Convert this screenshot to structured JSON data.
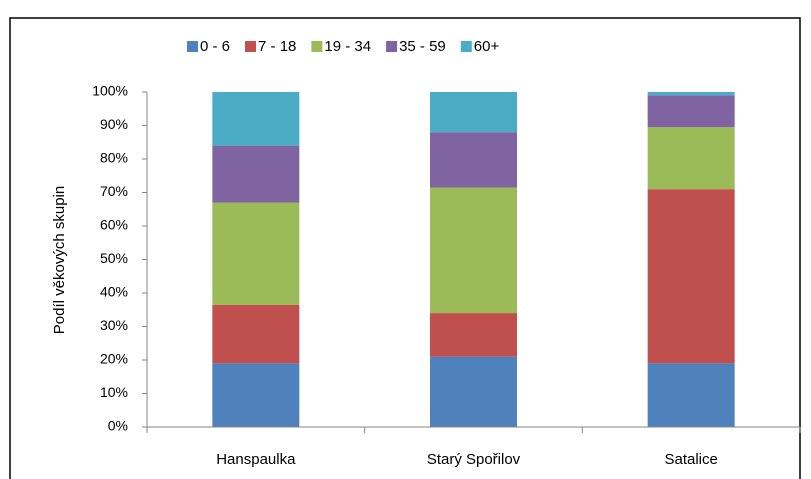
{
  "chart_data": {
    "type": "stacked_bar",
    "y_label": "Podíl věkových skupin",
    "categories": [
      "Hanspaulka",
      "Starý Spořilov",
      "Satalice"
    ],
    "series": [
      {
        "name": "0 - 6",
        "color": "#4f81bd",
        "values": [
          19,
          21,
          19
        ]
      },
      {
        "name": "7 - 18",
        "color": "#c0504d",
        "values": [
          17.5,
          13,
          52
        ]
      },
      {
        "name": "19 - 34",
        "color": "#9bbb59",
        "values": [
          30.5,
          37.5,
          18.5
        ]
      },
      {
        "name": "35 - 59",
        "color": "#8064a2",
        "values": [
          17,
          16.5,
          9.5
        ]
      },
      {
        "name": "60+",
        "color": "#4bacc6",
        "values": [
          16,
          12,
          1
        ]
      }
    ],
    "ylim": [
      0,
      100
    ],
    "yticks": [
      {
        "value": 0,
        "label": "0%"
      },
      {
        "value": 10,
        "label": "10%"
      },
      {
        "value": 20,
        "label": "20%"
      },
      {
        "value": 30,
        "label": "30%"
      },
      {
        "value": 40,
        "label": "40%"
      },
      {
        "value": 50,
        "label": "50%"
      },
      {
        "value": 60,
        "label": "60%"
      },
      {
        "value": 70,
        "label": "70%"
      },
      {
        "value": 80,
        "label": "80%"
      },
      {
        "value": 90,
        "label": "90%"
      },
      {
        "value": 100,
        "label": "100%"
      }
    ],
    "grid": false,
    "legend": "top"
  }
}
